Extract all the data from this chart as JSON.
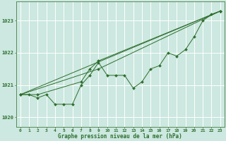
{
  "xlabel": "Graphe pression niveau de la mer (hPa)",
  "ylabel": "",
  "background_color": "#cce8e0",
  "grid_color": "#ffffff",
  "line_color": "#2d6e2d",
  "spine_color": "#5a8a5a",
  "xlim": [
    -0.5,
    23.5
  ],
  "ylim": [
    1019.7,
    1023.6
  ],
  "xtick_labels": [
    "0",
    "1",
    "2",
    "3",
    "4",
    "5",
    "6",
    "7",
    "8",
    "9",
    "10",
    "11",
    "12",
    "13",
    "14",
    "15",
    "16",
    "17",
    "18",
    "19",
    "20",
    "21",
    "22",
    "23"
  ],
  "ytick_values": [
    1020,
    1021,
    1022,
    1023
  ],
  "series1": [
    1020.7,
    1020.7,
    1020.6,
    1020.7,
    1020.4,
    1020.4,
    1020.4,
    1021.0,
    1021.3,
    1021.7,
    1021.3,
    1021.3,
    1021.3,
    1020.9,
    1021.1,
    1021.5,
    1021.6,
    1022.0,
    1021.9,
    1022.1,
    1022.5,
    1023.0,
    1023.2,
    1023.3
  ],
  "series2": [
    1020.7,
    null,
    1020.7,
    null,
    null,
    null,
    null,
    1021.1,
    1021.5,
    1021.75,
    null,
    null,
    null,
    null,
    null,
    null,
    null,
    null,
    null,
    null,
    null,
    null,
    null,
    1023.3
  ],
  "series3": [
    1020.7,
    null,
    null,
    null,
    null,
    null,
    null,
    null,
    null,
    1021.5,
    null,
    null,
    null,
    null,
    null,
    null,
    null,
    null,
    null,
    null,
    null,
    null,
    null,
    1023.3
  ],
  "series4_x": [
    0,
    23
  ],
  "series4_y": [
    1020.7,
    1023.3
  ],
  "label_fontsize": 4.5,
  "xlabel_fontsize": 5.5
}
